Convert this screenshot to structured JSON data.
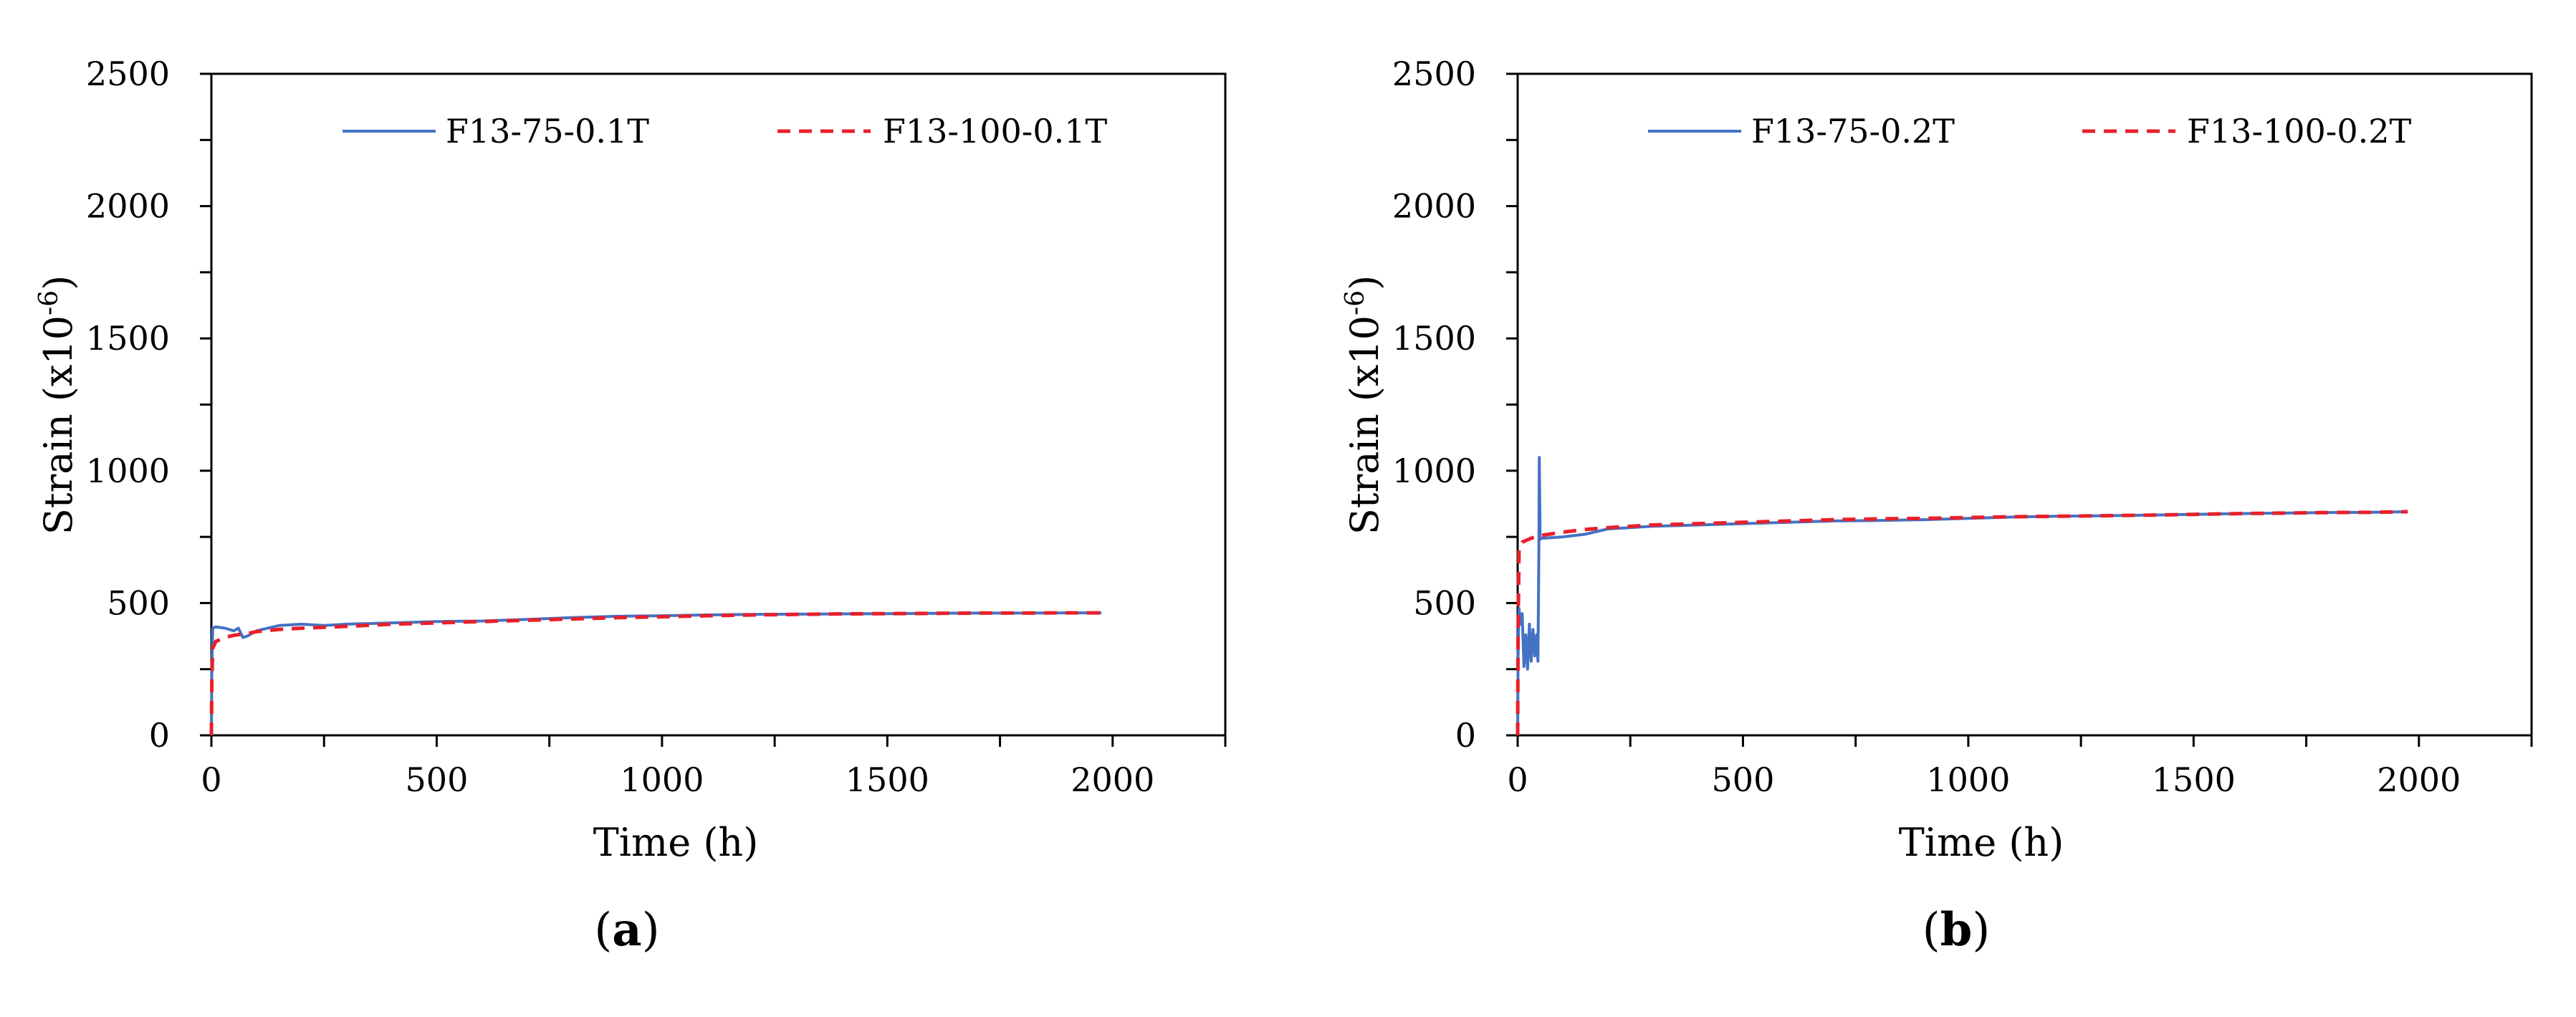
{
  "chart_data": [
    {
      "type": "line",
      "panel_label": "a",
      "xlabel": "Time (h)",
      "ylabel": "Strain  (x10",
      "ylabel_exponent": "-6",
      "ylabel_suffix": ")",
      "xlim": [
        0,
        2250
      ],
      "ylim": [
        0,
        2500
      ],
      "xticks": [
        0,
        500,
        1000,
        1500,
        2000
      ],
      "yticks": [
        0,
        500,
        1000,
        1500,
        2000,
        2500
      ],
      "grid": false,
      "legend_position": "top",
      "series": [
        {
          "name": "F13-75-0.1T",
          "color": "#4472C4",
          "dash": "solid",
          "x": [
            0,
            1,
            3,
            10,
            30,
            50,
            60,
            70,
            80,
            100,
            150,
            200,
            250,
            300,
            400,
            500,
            600,
            700,
            800,
            900,
            1000,
            1100,
            1200,
            1300,
            1400,
            1500,
            1600,
            1700,
            1800,
            1900,
            1975
          ],
          "y": [
            0,
            240,
            405,
            410,
            405,
            395,
            405,
            370,
            375,
            395,
            415,
            420,
            415,
            420,
            425,
            430,
            432,
            438,
            445,
            450,
            452,
            455,
            457,
            458,
            459,
            460,
            461,
            462,
            462,
            463,
            463
          ]
        },
        {
          "name": "F13-100-0.1T",
          "color": "#E8202A",
          "dash": "dashed",
          "x": [
            0,
            1,
            3,
            10,
            30,
            50,
            80,
            100,
            150,
            200,
            300,
            400,
            500,
            600,
            700,
            800,
            900,
            1000,
            1100,
            1200,
            1300,
            1400,
            1500,
            1600,
            1700,
            1800,
            1900,
            1975
          ],
          "y": [
            0,
            200,
            330,
            355,
            370,
            378,
            385,
            392,
            400,
            405,
            412,
            420,
            425,
            430,
            435,
            440,
            445,
            448,
            452,
            455,
            457,
            459,
            460,
            461,
            462,
            462,
            463,
            463
          ]
        }
      ]
    },
    {
      "type": "line",
      "panel_label": "b",
      "xlabel": "Time (h)",
      "ylabel": "Strain  (x10",
      "ylabel_exponent": "-6",
      "ylabel_suffix": ")",
      "xlim": [
        0,
        2250
      ],
      "ylim": [
        0,
        2500
      ],
      "xticks": [
        0,
        500,
        1000,
        1500,
        2000
      ],
      "yticks": [
        0,
        500,
        1000,
        1500,
        2000,
        2500
      ],
      "grid": false,
      "legend_position": "top",
      "series": [
        {
          "name": "F13-75-0.2T",
          "color": "#4472C4",
          "dash": "solid",
          "x": [
            0,
            1,
            3,
            6,
            10,
            14,
            18,
            22,
            26,
            30,
            34,
            38,
            42,
            45,
            47,
            48,
            50,
            53,
            60,
            100,
            150,
            200,
            300,
            400,
            500,
            600,
            700,
            800,
            900,
            1000,
            1100,
            1200,
            1300,
            1400,
            1500,
            1600,
            1700,
            1800,
            1900,
            1975
          ],
          "y": [
            0,
            300,
            480,
            420,
            460,
            260,
            380,
            250,
            420,
            280,
            400,
            300,
            380,
            280,
            700,
            1050,
            740,
            745,
            745,
            750,
            760,
            780,
            790,
            795,
            800,
            805,
            810,
            812,
            815,
            820,
            825,
            828,
            830,
            832,
            835,
            838,
            840,
            842,
            843,
            845
          ]
        },
        {
          "name": "F13-100-0.2T",
          "color": "#E8202A",
          "dash": "dashed",
          "x": [
            0,
            1,
            3,
            10,
            30,
            50,
            100,
            150,
            200,
            300,
            400,
            500,
            600,
            700,
            800,
            900,
            1000,
            1100,
            1200,
            1300,
            1400,
            1500,
            1600,
            1700,
            1800,
            1900,
            1975
          ],
          "y": [
            0,
            400,
            700,
            730,
            745,
            755,
            768,
            778,
            785,
            795,
            800,
            805,
            810,
            815,
            818,
            820,
            823,
            826,
            828,
            830,
            832,
            835,
            838,
            840,
            842,
            843,
            845
          ]
        }
      ]
    }
  ]
}
